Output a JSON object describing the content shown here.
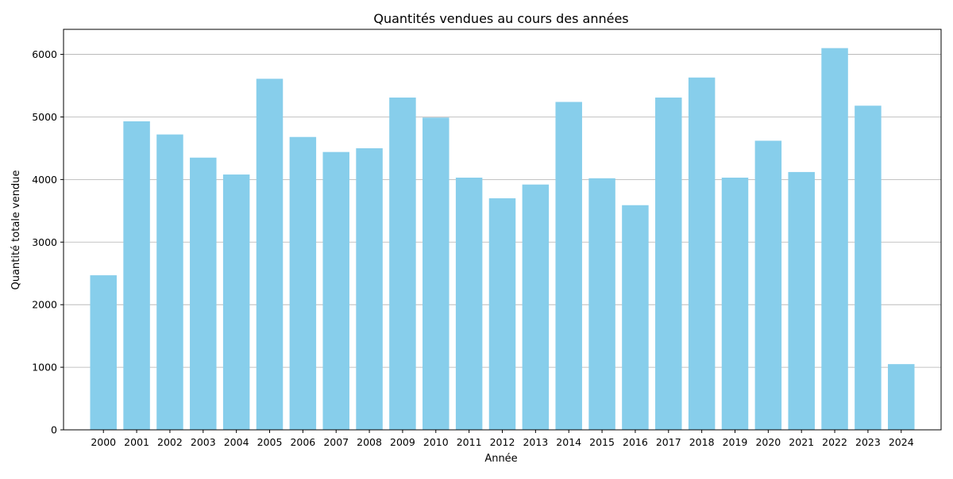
{
  "chart_data": {
    "type": "bar",
    "title": "Quantités vendues au cours des années",
    "xlabel": "Année",
    "ylabel": "Quantité totale vendue",
    "categories": [
      "2000",
      "2001",
      "2002",
      "2003",
      "2004",
      "2005",
      "2006",
      "2007",
      "2008",
      "2009",
      "2010",
      "2011",
      "2012",
      "2013",
      "2014",
      "2015",
      "2016",
      "2017",
      "2018",
      "2019",
      "2020",
      "2021",
      "2022",
      "2023",
      "2024"
    ],
    "values": [
      2470,
      4930,
      4720,
      4350,
      4080,
      5610,
      4680,
      4440,
      4500,
      5310,
      4990,
      4030,
      3700,
      3920,
      5240,
      4020,
      3590,
      5310,
      5630,
      4030,
      4620,
      4120,
      6100,
      5180,
      1050
    ],
    "ylim": [
      0,
      6400
    ],
    "yticks": [
      0,
      1000,
      2000,
      3000,
      4000,
      5000,
      6000
    ],
    "grid": "y-axis",
    "bar_color": "#87ceeb"
  }
}
